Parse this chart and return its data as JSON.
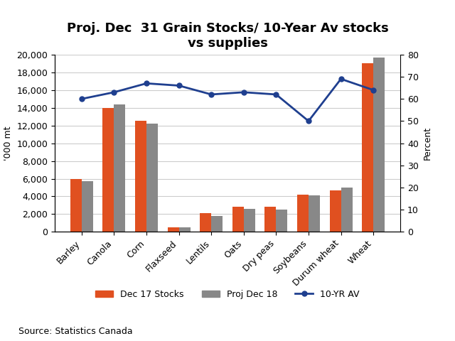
{
  "title": "Proj. Dec  31 Grain Stocks/ 10-Year Av stocks\nvs supplies",
  "categories": [
    "Barley",
    "Canola",
    "Corn",
    "Flaxseed",
    "Lentils",
    "Oats",
    "Dry peas",
    "Soybeans",
    "Durum wheat",
    "Wheat"
  ],
  "dec17_stocks": [
    6000,
    14000,
    12500,
    500,
    2100,
    2800,
    2800,
    4200,
    4700,
    19000
  ],
  "proj_dec18": [
    5700,
    14400,
    12200,
    500,
    1800,
    2600,
    2500,
    4100,
    5000,
    19700
  ],
  "ten_yr_av": [
    60,
    63,
    67,
    66,
    62,
    63,
    62,
    50,
    69,
    64
  ],
  "bar_color_orange": "#E05020",
  "bar_color_grey": "#888888",
  "line_color": "#1F3F8F",
  "ylabel_left": "'000 mt",
  "ylabel_right": "Percent",
  "ylim_left": [
    0,
    20000
  ],
  "ylim_right": [
    0,
    80
  ],
  "yticks_left": [
    0,
    2000,
    4000,
    6000,
    8000,
    10000,
    12000,
    14000,
    16000,
    18000,
    20000
  ],
  "yticks_right": [
    0,
    10,
    20,
    30,
    40,
    50,
    60,
    70,
    80
  ],
  "legend_labels": [
    "Dec 17 Stocks",
    "Proj Dec 18",
    "10-YR AV"
  ],
  "source_text": "Source: Statistics Canada",
  "background_color": "#ffffff",
  "title_fontsize": 13,
  "axis_fontsize": 9,
  "legend_fontsize": 9,
  "source_fontsize": 9,
  "bar_width": 0.35
}
